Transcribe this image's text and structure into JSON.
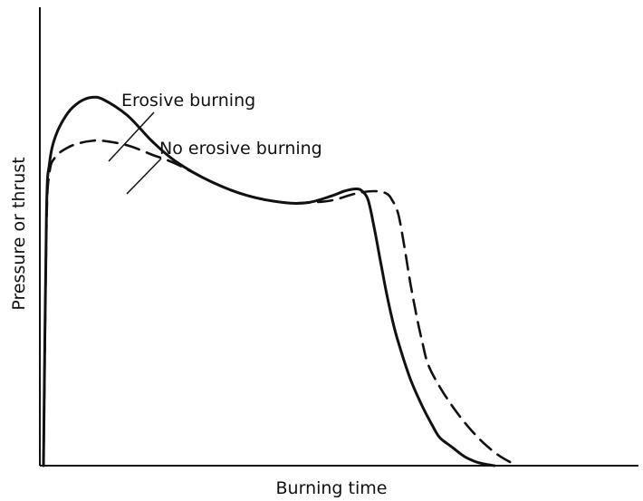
{
  "chart_data": {
    "type": "line",
    "title": "",
    "xlabel": "Burning time",
    "ylabel": "Pressure or thrust",
    "xlim": [
      0,
      100
    ],
    "ylim": [
      0,
      100
    ],
    "grid": false,
    "ticks": false,
    "series": [
      {
        "name": "Erosive burning",
        "style": "solid",
        "color": "#111111",
        "x": [
          0,
          0.5,
          1,
          2,
          4,
          6,
          8,
          10,
          14,
          18,
          22,
          28,
          34,
          40,
          44,
          48,
          50,
          52,
          53,
          54,
          55,
          56,
          57,
          58,
          59,
          61,
          63,
          65,
          66,
          68,
          70,
          72,
          74,
          75
        ],
        "y": [
          0,
          55,
          66,
          72,
          77,
          79.5,
          80.5,
          80,
          76.5,
          71,
          66.5,
          62,
          59,
          57.5,
          57.5,
          59,
          60,
          60.5,
          60,
          58,
          52,
          45,
          38,
          32,
          27,
          19,
          13,
          8,
          6,
          4,
          2,
          0.8,
          0.2,
          0
        ]
      },
      {
        "name": "No erosive burning",
        "style": "dashed",
        "color": "#111111",
        "x": [
          0,
          0.5,
          1,
          2,
          4,
          6,
          8,
          10,
          14,
          18,
          22,
          28,
          34,
          40,
          44,
          48,
          52,
          55,
          57,
          58,
          59,
          60,
          61,
          62,
          63,
          64,
          66,
          68,
          70,
          72,
          74,
          76,
          78
        ],
        "y": [
          0,
          52,
          64,
          67.5,
          69.5,
          70.5,
          71,
          71,
          70,
          68,
          66,
          62,
          59,
          57.5,
          57.5,
          58,
          59.5,
          60,
          59.5,
          58,
          55,
          48,
          40,
          33,
          27,
          22,
          17,
          13,
          9.5,
          6.5,
          4,
          2,
          0.5
        ]
      }
    ],
    "annotations": [
      {
        "text": "Erosive burning",
        "series": 0
      },
      {
        "text": "No erosive burning",
        "series": 1
      }
    ]
  }
}
